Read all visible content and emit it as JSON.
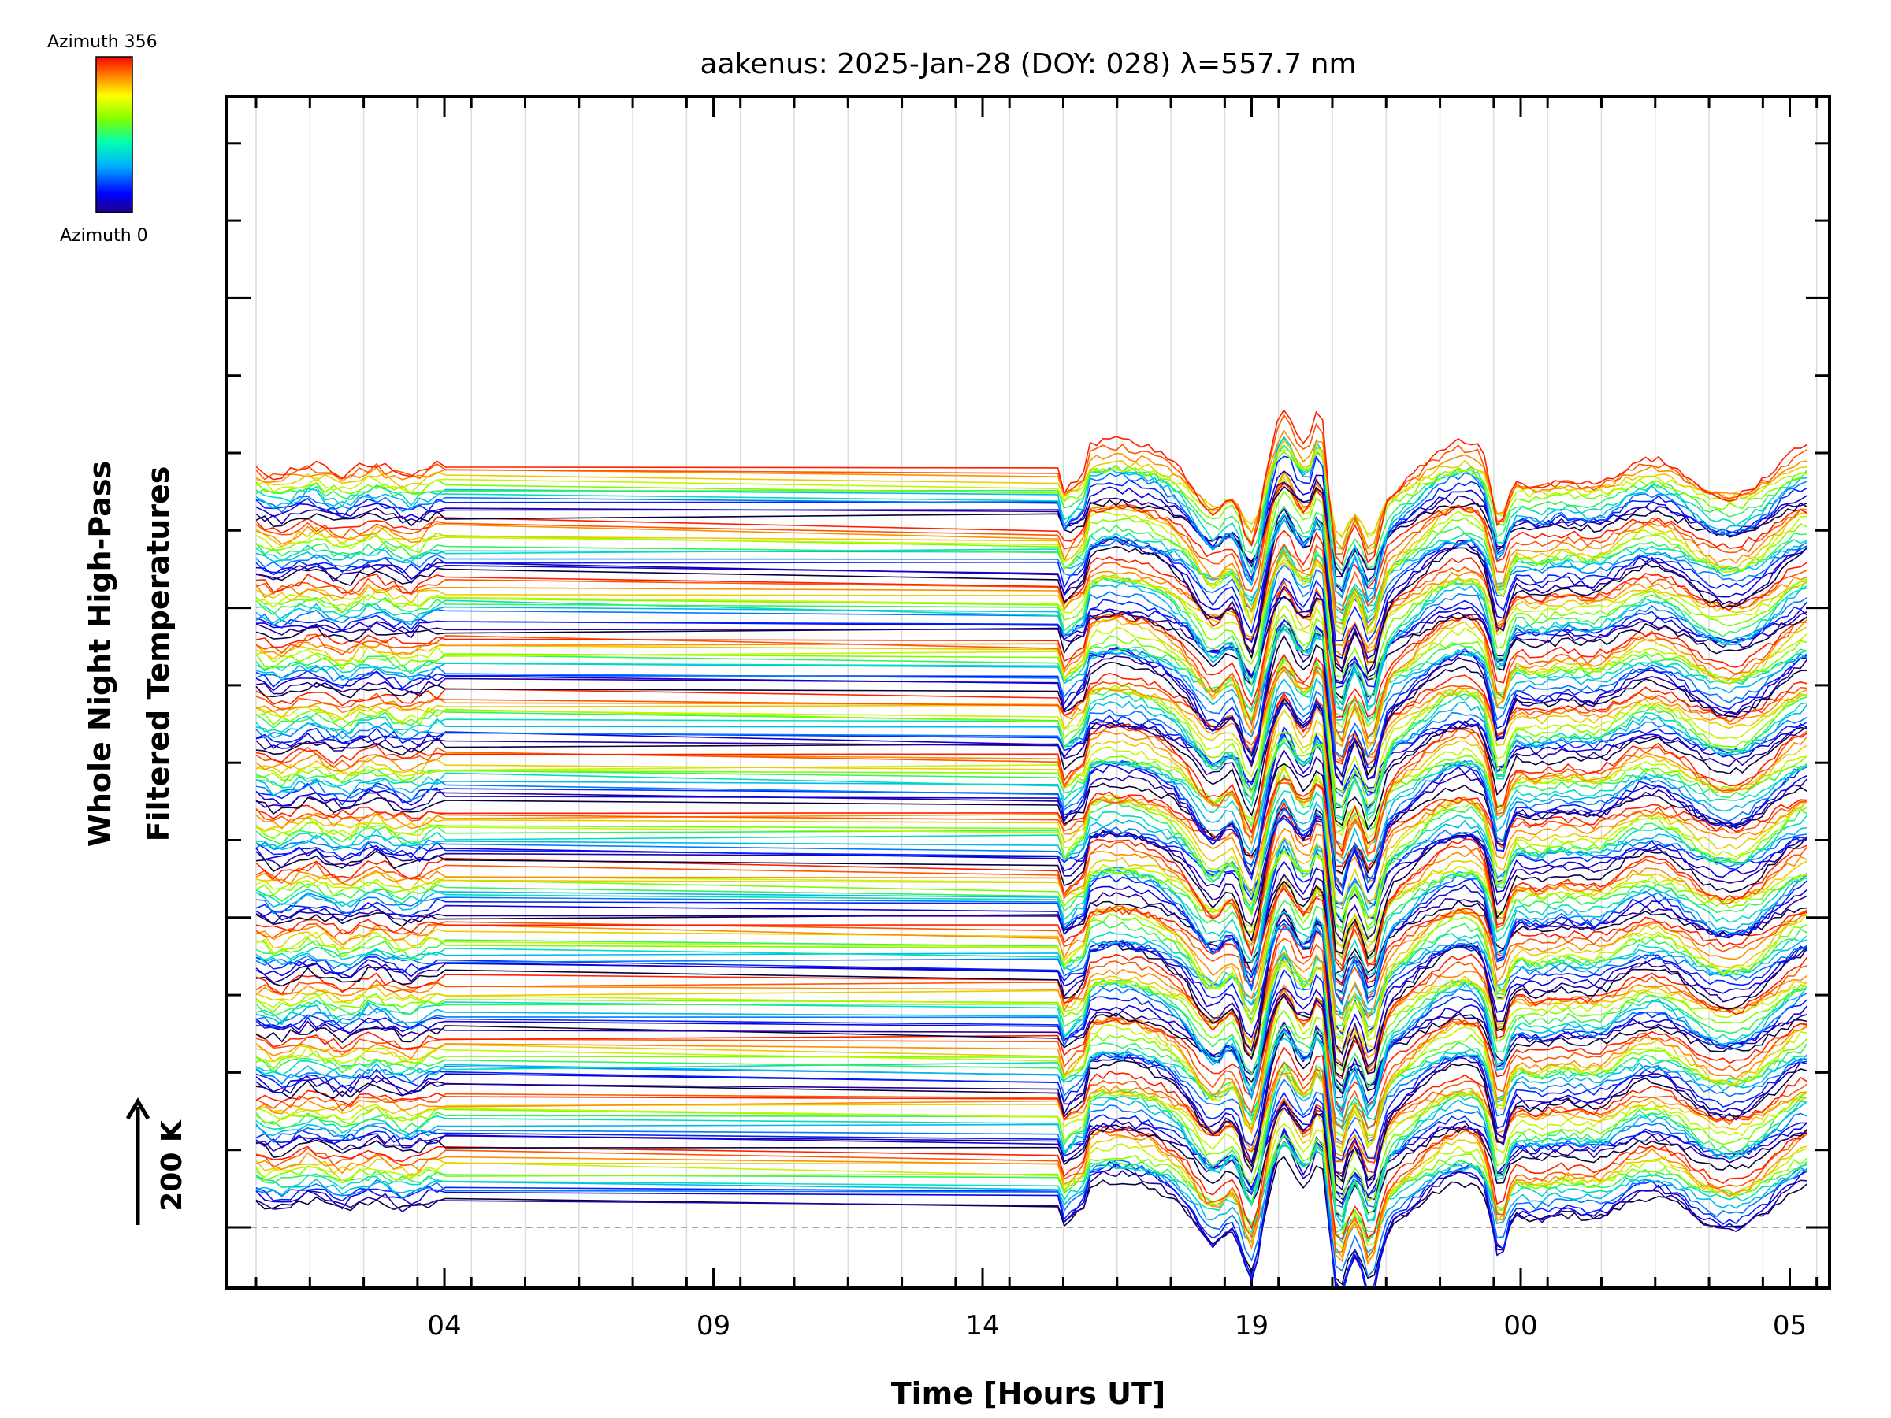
{
  "chart_data": {
    "type": "line",
    "title": "aakenus: 2025-Jan-28 (DOY: 028) λ=557.7 nm",
    "xlabel": "Time [Hours UT]",
    "ylabel_line1": "Whole Night High-Pass",
    "ylabel_line2": "Filtered Temperatures",
    "x_tick_labels": [
      "04",
      "09",
      "14",
      "19",
      "00",
      "05"
    ],
    "x_tick_hours": [
      4,
      9,
      14,
      19,
      24,
      29
    ],
    "x_range_hours": [
      0.0,
      29.5
    ],
    "data_gap_hours": [
      4.1,
      15.4
    ],
    "colorbar": {
      "label_top": "Azimuth 356",
      "label_bottom": "Azimuth 0",
      "colormap": "rainbow",
      "azimuth_range": [
        0,
        356
      ]
    },
    "scale_bar": {
      "label": "200 K"
    },
    "series_groups": 13,
    "series_per_group": 14,
    "grid": true,
    "legend": "colorbar top-left"
  }
}
